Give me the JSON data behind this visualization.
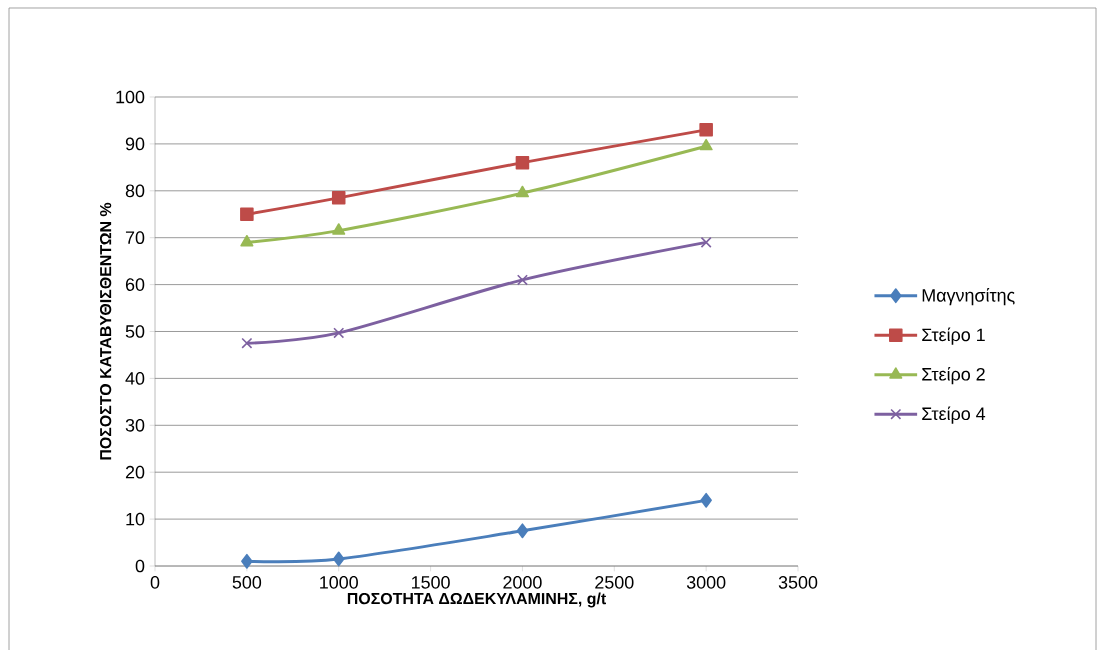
{
  "chart_data": {
    "type": "line",
    "xlabel": "ΠΟΣΟΤΗΤΑ ΔΩΔΕΚΥΛΑΜΙΝΗΣ, g/t",
    "ylabel": "ΠΟΣΟΣΤΟ  ΚΑΤΑΒΥΘΙΣΘΕΝΤΩΝ %",
    "x": [
      500,
      1000,
      2000,
      3000
    ],
    "series": [
      {
        "name": "Μαγνησίτης",
        "color": "#4a7ebb",
        "marker": "diamond",
        "values": [
          1,
          1.5,
          7.5,
          14
        ]
      },
      {
        "name": "Στείρο 1",
        "color": "#be4b48",
        "marker": "square",
        "values": [
          75,
          78.5,
          86,
          93
        ]
      },
      {
        "name": "Στείρο 2",
        "color": "#98b954",
        "marker": "triangle",
        "values": [
          69,
          71.5,
          79.5,
          89.5
        ]
      },
      {
        "name": "Στείρο 4",
        "color": "#7d60a0",
        "marker": "cross",
        "values": [
          47.5,
          49.7,
          61,
          69
        ]
      }
    ],
    "xlim": [
      0,
      3500
    ],
    "xticks": [
      0,
      500,
      1000,
      1500,
      2000,
      2500,
      3000,
      3500
    ],
    "ylim": [
      0,
      100
    ],
    "yticks": [
      0,
      10,
      20,
      30,
      40,
      50,
      60,
      70,
      80,
      90,
      100
    ],
    "grid": "y",
    "legend": "right",
    "line_style": "solid"
  }
}
